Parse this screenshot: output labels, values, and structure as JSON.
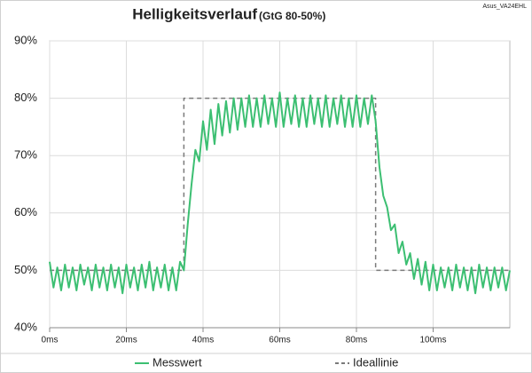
{
  "chart_data": {
    "type": "line",
    "title": "Helligkeitsverlauf",
    "subtitle": "(GtG 80-50%)",
    "corner_label": "Asus_VA24EHL",
    "xlim": [
      0,
      120
    ],
    "ylim": [
      40,
      90
    ],
    "xticks": [
      {
        "value": 0,
        "label": "0ms"
      },
      {
        "value": 20,
        "label": "20ms"
      },
      {
        "value": 40,
        "label": "40ms"
      },
      {
        "value": 60,
        "label": "60ms"
      },
      {
        "value": 80,
        "label": "80ms"
      },
      {
        "value": 100,
        "label": "100ms"
      }
    ],
    "yticks": [
      {
        "value": 40,
        "label": "40%"
      },
      {
        "value": 50,
        "label": "50%"
      },
      {
        "value": 60,
        "label": "60%"
      },
      {
        "value": 70,
        "label": "70%"
      },
      {
        "value": 80,
        "label": "80%"
      },
      {
        "value": 90,
        "label": "90%"
      }
    ],
    "grid": true,
    "legend": "bottom",
    "series": [
      {
        "name": "Ideallinie",
        "color": "#7a7a7a",
        "dashed": true,
        "x": [
          0,
          35,
          35,
          85,
          85,
          120
        ],
        "values": [
          50,
          50,
          80,
          80,
          50,
          50
        ]
      },
      {
        "name": "Messwert",
        "color": "#3cbf72",
        "dashed": false,
        "x": [
          0,
          1,
          2,
          3,
          4,
          5,
          6,
          7,
          8,
          9,
          10,
          11,
          12,
          13,
          14,
          15,
          16,
          17,
          18,
          19,
          20,
          21,
          22,
          23,
          24,
          25,
          26,
          27,
          28,
          29,
          30,
          31,
          32,
          33,
          34,
          35,
          36,
          37,
          38,
          39,
          40,
          41,
          42,
          43,
          44,
          45,
          46,
          47,
          48,
          49,
          50,
          51,
          52,
          53,
          54,
          55,
          56,
          57,
          58,
          59,
          60,
          61,
          62,
          63,
          64,
          65,
          66,
          67,
          68,
          69,
          70,
          71,
          72,
          73,
          74,
          75,
          76,
          77,
          78,
          79,
          80,
          81,
          82,
          83,
          84,
          85,
          86,
          87,
          88,
          89,
          90,
          91,
          92,
          93,
          94,
          95,
          96,
          97,
          98,
          99,
          100,
          101,
          102,
          103,
          104,
          105,
          106,
          107,
          108,
          109,
          110,
          111,
          112,
          113,
          114,
          115,
          116,
          117,
          118,
          119,
          120
        ],
        "values": [
          51.5,
          47,
          50.5,
          46.5,
          51,
          47,
          50.5,
          46.5,
          51,
          47.5,
          50.5,
          46.5,
          51,
          47,
          50.5,
          46.5,
          51,
          47,
          50.5,
          46,
          51,
          47,
          50.5,
          46.5,
          51,
          47,
          51.5,
          46.5,
          50.5,
          47,
          51,
          46.5,
          50.5,
          46.5,
          51.5,
          50,
          58,
          65,
          71,
          69,
          76,
          71,
          78,
          72,
          79,
          73.5,
          79.5,
          74,
          80,
          74.5,
          80,
          75,
          80.5,
          75,
          80,
          75,
          80.5,
          75.5,
          80,
          75,
          81,
          75,
          80,
          75.5,
          80.5,
          75,
          80,
          75,
          80.5,
          75.5,
          80,
          75,
          80.5,
          75,
          80,
          75.5,
          80.5,
          75,
          80,
          75,
          80.5,
          75,
          80,
          75.5,
          80.5,
          76,
          68,
          63,
          61,
          57,
          58,
          53,
          55,
          51,
          53,
          48.5,
          52,
          47.5,
          51.5,
          46.5,
          51,
          46.5,
          50.5,
          47,
          50.5,
          46.5,
          51,
          47,
          50.5,
          46.5,
          50.5,
          46,
          51,
          47,
          50.5,
          46.5,
          50.5,
          47,
          50.5,
          46.5,
          50
        ]
      }
    ]
  }
}
